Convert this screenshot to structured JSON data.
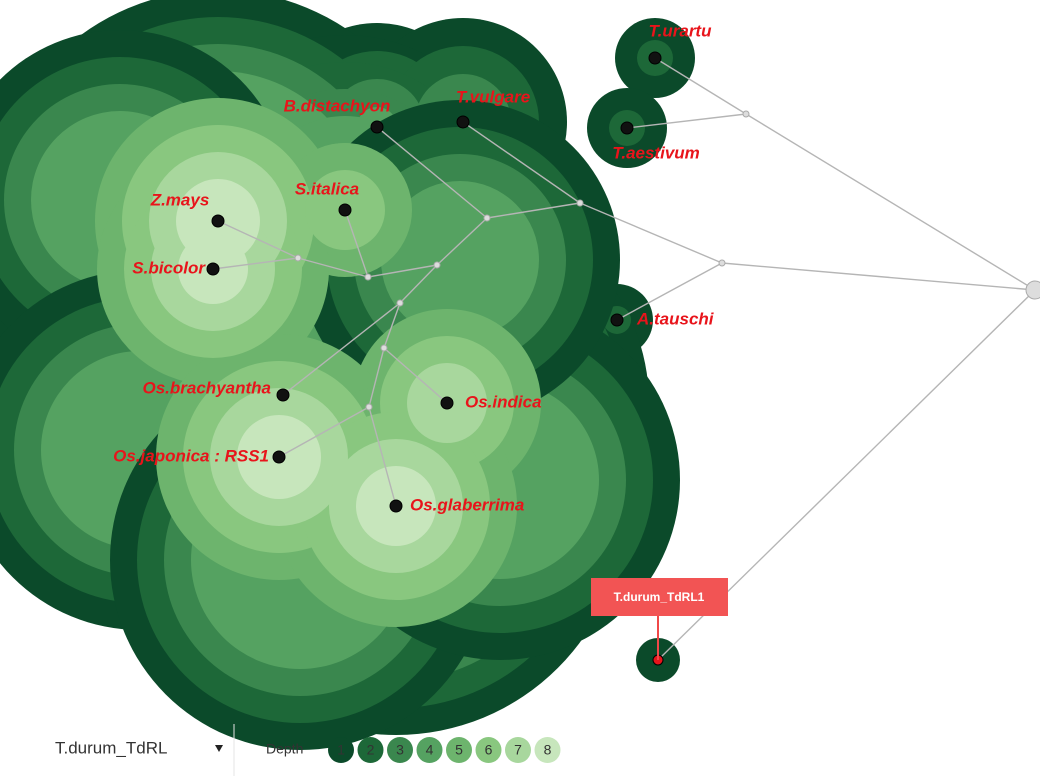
{
  "nodes": [
    {
      "label": "T.urartu"
    },
    {
      "label": "B.distachyon"
    },
    {
      "label": "T.vulgare"
    },
    {
      "label": "T.aestivum"
    },
    {
      "label": "Z.mays"
    },
    {
      "label": "S.italica"
    },
    {
      "label": "S.bicolor"
    },
    {
      "label": "A.tauschi"
    },
    {
      "label": "Os.brachyantha"
    },
    {
      "label": "Os.indica"
    },
    {
      "label": "Os.japonica : RSS1"
    },
    {
      "label": "Os.glaberrima"
    }
  ],
  "tooltip": "T.durum_TdRL1",
  "dropdown": "T.durum_TdRL",
  "depth_label": "Depth",
  "depth_levels": [
    1,
    2,
    3,
    4,
    5,
    6,
    7,
    8
  ]
}
